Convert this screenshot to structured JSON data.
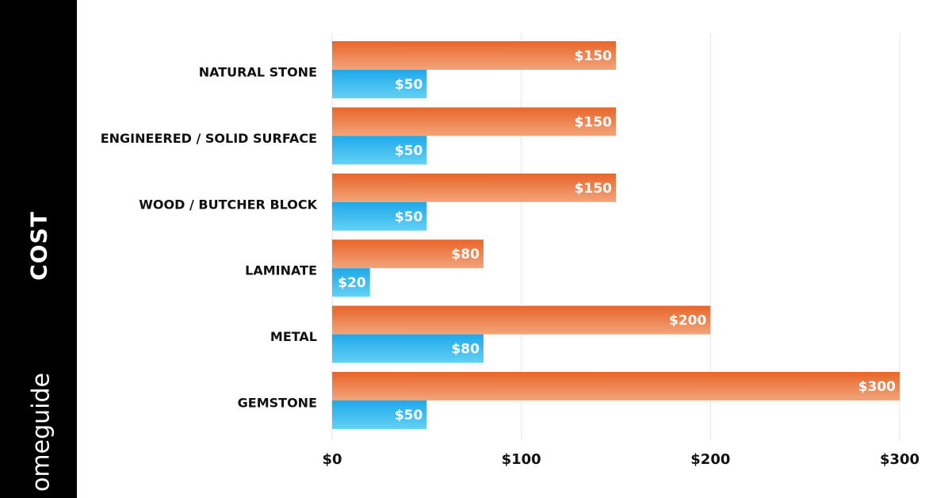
{
  "side_panel": {
    "label": "COST",
    "brand": "omeguide"
  },
  "header": {
    "title": ""
  },
  "colors": {
    "sidebar": "#000000",
    "series_high": "#ec7a3c",
    "series_low": "#33b5ec",
    "grid": "#e4e4e4"
  },
  "chart_data": {
    "type": "bar",
    "orientation": "horizontal",
    "categories": [
      "NATURAL STONE",
      "ENGINEERED / SOLID SURFACE",
      "WOOD / BUTCHER BLOCK",
      "LAMINATE",
      "METAL",
      "GEMSTONE"
    ],
    "series": [
      {
        "values": [
          150,
          150,
          150,
          80,
          200,
          300
        ],
        "labels": [
          "$150",
          "$150",
          "$150",
          "$80",
          "$200",
          "$300"
        ],
        "color": "#ec7a3c"
      },
      {
        "values": [
          50,
          50,
          50,
          20,
          80,
          50
        ],
        "labels": [
          "$50",
          "$50",
          "$50",
          "$20",
          "$80",
          "$50"
        ],
        "color": "#33b5ec"
      }
    ],
    "xlim": [
      0,
      300
    ],
    "xticks": [
      0,
      100,
      200,
      300
    ],
    "xtick_labels": [
      "$0",
      "$100",
      "$200",
      "$300"
    ],
    "grid": true,
    "legend": "none"
  }
}
